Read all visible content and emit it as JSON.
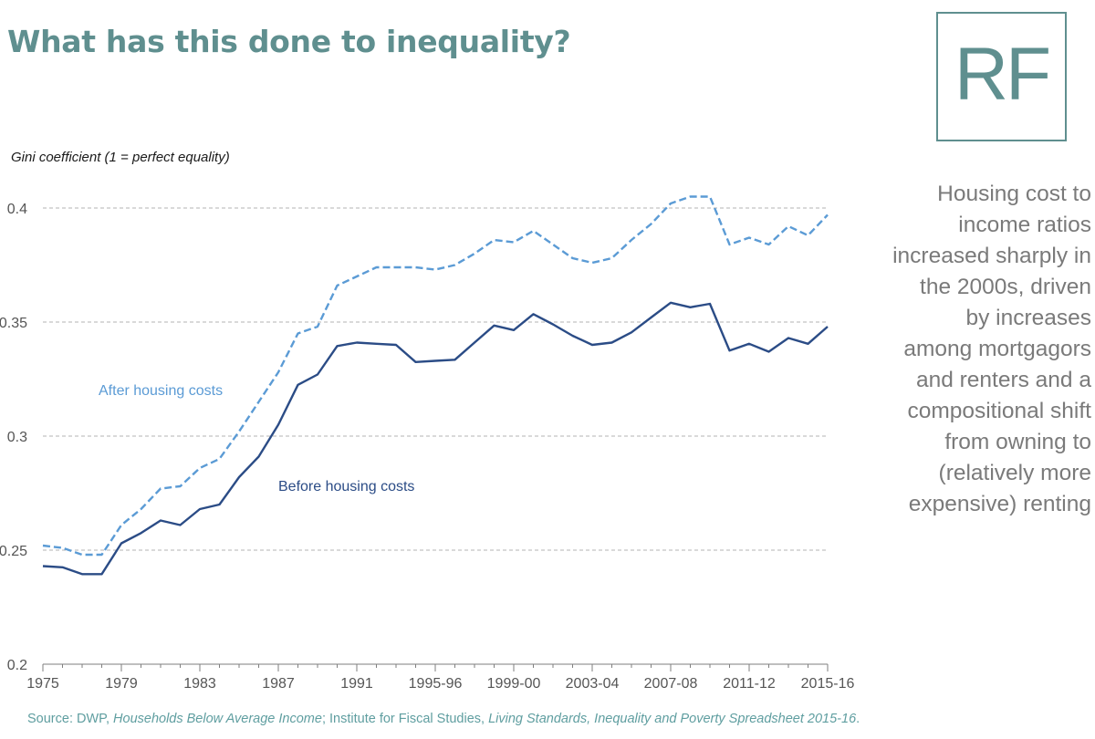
{
  "title": "What has this done to inequality?",
  "logo": {
    "text": "RF"
  },
  "side_note": {
    "lines": [
      "Housing cost to",
      "income ratios",
      "increased sharply in",
      "the 2000s, driven",
      "by increases",
      "among mortgagors",
      "and renters and a",
      "compositional shift",
      "from owning to",
      "(relatively more",
      "expensive) renting"
    ]
  },
  "source": {
    "prefix": "Source: DWP, ",
    "ref1": "Households Below Average Income",
    "mid": "; Institute for Fiscal Studies, ",
    "ref2": "Living Standards, Inequality and Poverty Spreadsheet 2015-16",
    "suffix": "."
  },
  "colors": {
    "title": "#5f8f8f",
    "before": "#2b4c86",
    "after": "#5b9bd5",
    "grid": "#b3b3b3",
    "axis_text": "#555555"
  },
  "chart_data": {
    "type": "line",
    "title": "",
    "ylabel": "Gini coefficient (1 = perfect equality)",
    "xlabel": "",
    "ylim": [
      0.2,
      0.4
    ],
    "y_ticks": [
      "0.2",
      "0.25",
      "0.3",
      "0.35",
      "0.4"
    ],
    "x_ticks": [
      "1975",
      "1979",
      "1983",
      "1987",
      "1991",
      "1995-96",
      "1999-00",
      "2003-04",
      "2007-08",
      "2011-12",
      "2015-16"
    ],
    "x": [
      "1975",
      "1976",
      "1977",
      "1978",
      "1979",
      "1980",
      "1981",
      "1982",
      "1983",
      "1984",
      "1985",
      "1986",
      "1987",
      "1988",
      "1989",
      "1990",
      "1991",
      "1992",
      "1993",
      "1994-95",
      "1995-96",
      "1996-97",
      "1997-98",
      "1998-99",
      "1999-00",
      "2000-01",
      "2001-02",
      "2002-03",
      "2003-04",
      "2004-05",
      "2005-06",
      "2006-07",
      "2007-08",
      "2008-09",
      "2009-10",
      "2010-11",
      "2011-12",
      "2012-13",
      "2013-14",
      "2014-15",
      "2015-16"
    ],
    "grid": "horizontal dashed",
    "series": [
      {
        "name": "After housing costs",
        "style": "dashed",
        "values": [
          0.252,
          0.251,
          0.248,
          0.248,
          0.261,
          0.268,
          0.277,
          0.278,
          0.286,
          0.29,
          0.302,
          0.315,
          0.328,
          0.345,
          0.348,
          0.366,
          0.37,
          0.374,
          0.374,
          0.374,
          0.373,
          0.375,
          0.38,
          0.386,
          0.385,
          0.39,
          0.384,
          0.378,
          0.376,
          0.378,
          0.386,
          0.393,
          0.402,
          0.405,
          0.405,
          0.384,
          0.387,
          0.384,
          0.392,
          0.388,
          0.397
        ]
      },
      {
        "name": "Before housing costs",
        "style": "solid",
        "values": [
          0.243,
          0.2425,
          0.2395,
          0.2395,
          0.253,
          0.2575,
          0.263,
          0.261,
          0.268,
          0.27,
          0.282,
          0.291,
          0.305,
          0.3225,
          0.327,
          0.3395,
          0.341,
          0.3405,
          0.34,
          0.3325,
          0.333,
          0.3335,
          0.341,
          0.3485,
          0.3465,
          0.3535,
          0.349,
          0.344,
          0.34,
          0.341,
          0.3455,
          0.352,
          0.3585,
          0.3565,
          0.358,
          0.3375,
          0.3405,
          0.337,
          0.343,
          0.3405,
          0.348
        ]
      }
    ],
    "series_labels": [
      {
        "text": "After housing costs",
        "series": 0
      },
      {
        "text": "Before housing costs",
        "series": 1
      }
    ]
  }
}
